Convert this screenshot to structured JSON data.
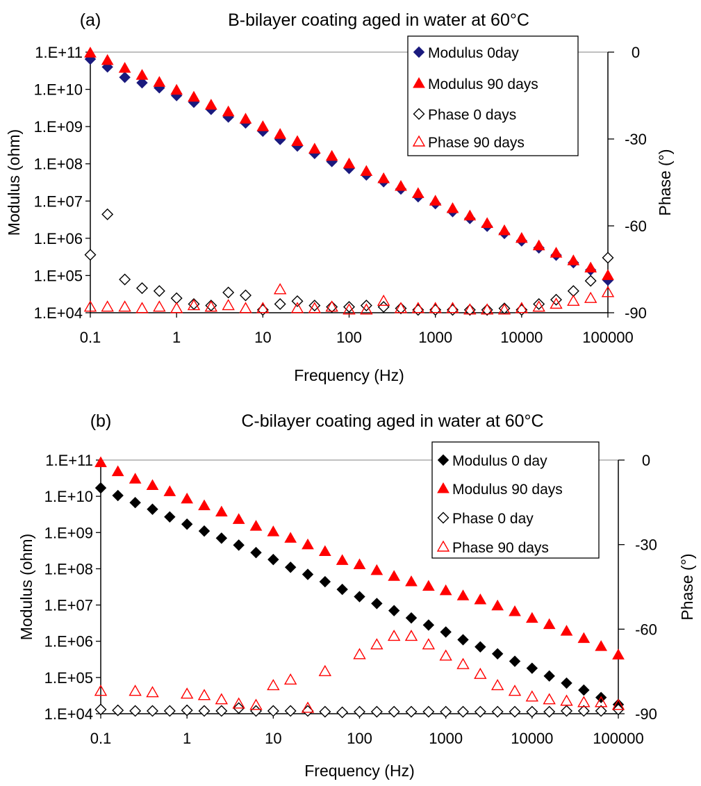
{
  "chart_data": [
    {
      "type": "scatter",
      "panel_label": "(a)",
      "title": "B-bilayer coating aged in water at 60°C",
      "xlabel": "Frequency (Hz)",
      "ylabel": "Modulus (ohm)",
      "y2label": "Phase (°)",
      "x_scale": "log",
      "y_scale": "log",
      "xlim": [
        0.1,
        100000
      ],
      "ylim": [
        10000,
        100000000000
      ],
      "y2lim": [
        -90,
        0
      ],
      "x_ticks": [
        "0.1",
        "1",
        "10",
        "100",
        "1000",
        "10000",
        "100000"
      ],
      "y_ticks": [
        "1.E+04",
        "1.E+05",
        "1.E+06",
        "1.E+07",
        "1.E+08",
        "1.E+09",
        "1.E+10",
        "1.E+11"
      ],
      "y2_ticks": [
        "0",
        "-30",
        "-60",
        "-90"
      ],
      "grid": false,
      "legend_position": "top-right",
      "series": [
        {
          "name": "Modulus 0day",
          "axis": "left",
          "marker": "diamond-filled",
          "color": "#1a1a7e",
          "x": [
            0.1,
            0.158,
            0.251,
            0.398,
            0.631,
            1,
            1.585,
            2.512,
            3.981,
            6.31,
            10,
            15.85,
            25.12,
            39.81,
            63.1,
            100,
            158.5,
            251.2,
            398.1,
            631,
            1000,
            1585,
            2512,
            3981,
            6310,
            10000,
            15850,
            25120,
            39810,
            63100,
            100000
          ],
          "y": [
            65000000000.0,
            40000000000.0,
            21000000000.0,
            15000000000.0,
            11000000000.0,
            6800000000.0,
            4500000000.0,
            2900000000.0,
            1800000000.0,
            1250000000.0,
            750000000.0,
            450000000.0,
            300000000.0,
            190000000.0,
            115000000.0,
            75000000.0,
            50000000.0,
            33000000.0,
            21000000.0,
            13000000.0,
            8500000.0,
            5200000.0,
            3400000.0,
            2100000.0,
            1350000.0,
            850000.0,
            550000.0,
            350000.0,
            220000.0,
            140000.0,
            75000.0
          ]
        },
        {
          "name": "Modulus 90 days",
          "axis": "left",
          "marker": "triangle-filled",
          "color": "#ff0000",
          "x": [
            0.1,
            0.158,
            0.251,
            0.398,
            0.631,
            1,
            1.585,
            2.512,
            3.981,
            6.31,
            10,
            15.85,
            25.12,
            39.81,
            63.1,
            100,
            158.5,
            251.2,
            398.1,
            631,
            1000,
            1585,
            2512,
            3981,
            6310,
            10000,
            15850,
            25120,
            39810,
            63100,
            100000
          ],
          "y": [
            95000000000.0,
            60000000000.0,
            37000000000.0,
            24000000000.0,
            15500000000.0,
            9500000000.0,
            6200000000.0,
            3800000000.0,
            2500000000.0,
            1600000000.0,
            1000000000.0,
            620000000.0,
            400000000.0,
            250000000.0,
            160000000.0,
            100000000.0,
            63000000.0,
            40000000.0,
            25000000.0,
            16000000.0,
            10000000.0,
            6300000.0,
            4000000.0,
            2500000.0,
            1600000.0,
            1000000.0,
            630000.0,
            400000.0,
            250000.0,
            160000.0,
            100000.0
          ]
        },
        {
          "name": "Phase 0 days",
          "axis": "right",
          "marker": "diamond-open",
          "color": "#000000",
          "x": [
            0.1,
            0.158,
            0.251,
            0.398,
            0.631,
            1,
            1.585,
            2.512,
            3.981,
            6.31,
            10,
            15.85,
            25.12,
            39.81,
            63.1,
            100,
            158.5,
            251.2,
            398.1,
            631,
            1000,
            1585,
            2512,
            3981,
            6310,
            10000,
            15850,
            25120,
            39810,
            63100,
            100000
          ],
          "y": [
            -70,
            -56,
            -78.5,
            -81.5,
            -82.5,
            -85,
            -87,
            -87.5,
            -83,
            -84,
            -89,
            -87,
            -86,
            -87.5,
            -88,
            -88,
            -87.5,
            -88,
            -88.5,
            -89,
            -89,
            -89,
            -89,
            -89,
            -88.5,
            -89,
            -87,
            -85.5,
            -82.5,
            -79,
            -71
          ]
        },
        {
          "name": "Phase 90 days",
          "axis": "right",
          "marker": "triangle-open",
          "color": "#ff0000",
          "x": [
            0.1,
            0.158,
            0.251,
            0.398,
            0.631,
            1,
            1.585,
            2.512,
            3.981,
            6.31,
            10,
            15.85,
            25.12,
            39.81,
            63.1,
            100,
            158.5,
            251.2,
            398.1,
            631,
            1000,
            1585,
            2512,
            3981,
            6310,
            10000,
            15850,
            25120,
            39810,
            63100,
            100000
          ],
          "y": [
            -88,
            -88,
            -88,
            -88.5,
            -88,
            -88.5,
            -87.5,
            -88,
            -87.5,
            -88.5,
            -88.5,
            -82,
            -88.5,
            -88.5,
            -88,
            -89,
            -89,
            -86,
            -88.5,
            -88.5,
            -88.5,
            -88.5,
            -89,
            -89,
            -89,
            -88.5,
            -88,
            -87,
            -86,
            -85,
            -83
          ]
        }
      ]
    },
    {
      "type": "scatter",
      "panel_label": "(b)",
      "title": "C-bilayer coating aged in water at 60°C",
      "xlabel": "Frequency (Hz)",
      "ylabel": "Modulus (ohm)",
      "y2label": "Phase (°)",
      "x_scale": "log",
      "y_scale": "log",
      "xlim": [
        0.1,
        100000
      ],
      "ylim": [
        10000,
        100000000000
      ],
      "y2lim": [
        -90,
        0
      ],
      "x_ticks": [
        "0.1",
        "1",
        "10",
        "100",
        "1000",
        "10000",
        "100000"
      ],
      "y_ticks": [
        "1.E+04",
        "1.E+05",
        "1.E+06",
        "1.E+07",
        "1.E+08",
        "1.E+09",
        "1.E+10",
        "1.E+11"
      ],
      "y2_ticks": [
        "0",
        "-30",
        "-60",
        "-90"
      ],
      "grid": false,
      "legend_position": "top-right",
      "series": [
        {
          "name": "Modulus 0 day",
          "axis": "left",
          "marker": "diamond-filled",
          "color": "#000000",
          "x": [
            0.1,
            0.158,
            0.251,
            0.398,
            0.631,
            1,
            1.585,
            2.512,
            3.981,
            6.31,
            10,
            15.85,
            25.12,
            39.81,
            63.1,
            100,
            158.5,
            251.2,
            398.1,
            631,
            1000,
            1585,
            2512,
            3981,
            6310,
            10000,
            15850,
            25120,
            39810,
            63100,
            100000
          ],
          "y": [
            17000000000.0,
            10500000000.0,
            6700000000.0,
            4400000000.0,
            2700000000.0,
            1700000000.0,
            1100000000.0,
            700000000.0,
            450000000.0,
            280000000.0,
            180000000.0,
            110000000.0,
            70000000.0,
            44000000.0,
            27000000.0,
            17000000.0,
            11000000.0,
            7000000.0,
            4400000.0,
            2800000.0,
            1800000.0,
            1100000.0,
            700000.0,
            450000.0,
            280000.0,
            180000.0,
            110000.0,
            70000.0,
            45000.0,
            28000.0,
            18000.0
          ]
        },
        {
          "name": "Modulus 90 days",
          "axis": "left",
          "marker": "triangle-filled",
          "color": "#ff0000",
          "x": [
            0.1,
            0.158,
            0.251,
            0.398,
            0.631,
            1,
            1.585,
            2.512,
            3.981,
            6.31,
            10,
            15.85,
            25.12,
            39.81,
            63.1,
            100,
            158.5,
            251.2,
            398.1,
            631,
            1000,
            1585,
            2512,
            3981,
            6310,
            10000,
            15850,
            25120,
            39810,
            63100,
            100000
          ],
          "y": [
            85000000000.0,
            48000000000.0,
            30000000000.0,
            20000000000.0,
            13500000000.0,
            8500000000.0,
            5500000000.0,
            3700000000.0,
            2300000000.0,
            1500000000.0,
            1050000000.0,
            700000000.0,
            460000000.0,
            300000000.0,
            170000000.0,
            130000000.0,
            90000000.0,
            62000000.0,
            44000000.0,
            33000000.0,
            25000000.0,
            18000000.0,
            14000000.0,
            9500000.0,
            6600000.0,
            4300000.0,
            2900000.0,
            1900000.0,
            1200000.0,
            720000.0,
            420000.0
          ]
        },
        {
          "name": "Phase 0 day",
          "axis": "right",
          "marker": "diamond-open",
          "color": "#000000",
          "x": [
            0.1,
            0.158,
            0.251,
            0.398,
            0.631,
            1,
            1.585,
            2.512,
            3.981,
            6.31,
            10,
            15.85,
            25.12,
            39.81,
            63.1,
            100,
            158.5,
            251.2,
            398.1,
            631,
            1000,
            1585,
            2512,
            3981,
            6310,
            10000,
            15850,
            25120,
            39810,
            63100,
            100000
          ],
          "y": [
            -88.5,
            -88.8,
            -89,
            -89,
            -89,
            -88.8,
            -89,
            -89,
            -88,
            -89,
            -89,
            -89,
            -89,
            -89.3,
            -89.5,
            -89.3,
            -89.3,
            -89.3,
            -89.3,
            -89.3,
            -89.3,
            -89.3,
            -89.3,
            -89.3,
            -89.3,
            -89.3,
            -89.3,
            -89,
            -89,
            -89,
            -88.5
          ]
        },
        {
          "name": "Phase 90 days",
          "axis": "right",
          "marker": "triangle-open",
          "color": "#ff0000",
          "x": [
            0.1,
            0.251,
            0.398,
            1,
            1.585,
            2.512,
            3.981,
            6.31,
            10,
            15.85,
            25.12,
            39.81,
            100,
            158.5,
            251.2,
            398.1,
            631,
            1000,
            1585,
            2512,
            3981,
            6310,
            10000,
            15850,
            25120,
            39810,
            63100,
            100000
          ],
          "y": [
            -82,
            -82,
            -82.5,
            -83,
            -83.5,
            -85,
            -86.5,
            -87,
            -80,
            -78,
            -88,
            -75,
            -69,
            -65.5,
            -62.5,
            -62.5,
            -65.5,
            -69.5,
            -72.5,
            -76,
            -80,
            -82,
            -84,
            -85,
            -85.5,
            -86,
            -86,
            -87
          ]
        }
      ]
    }
  ]
}
